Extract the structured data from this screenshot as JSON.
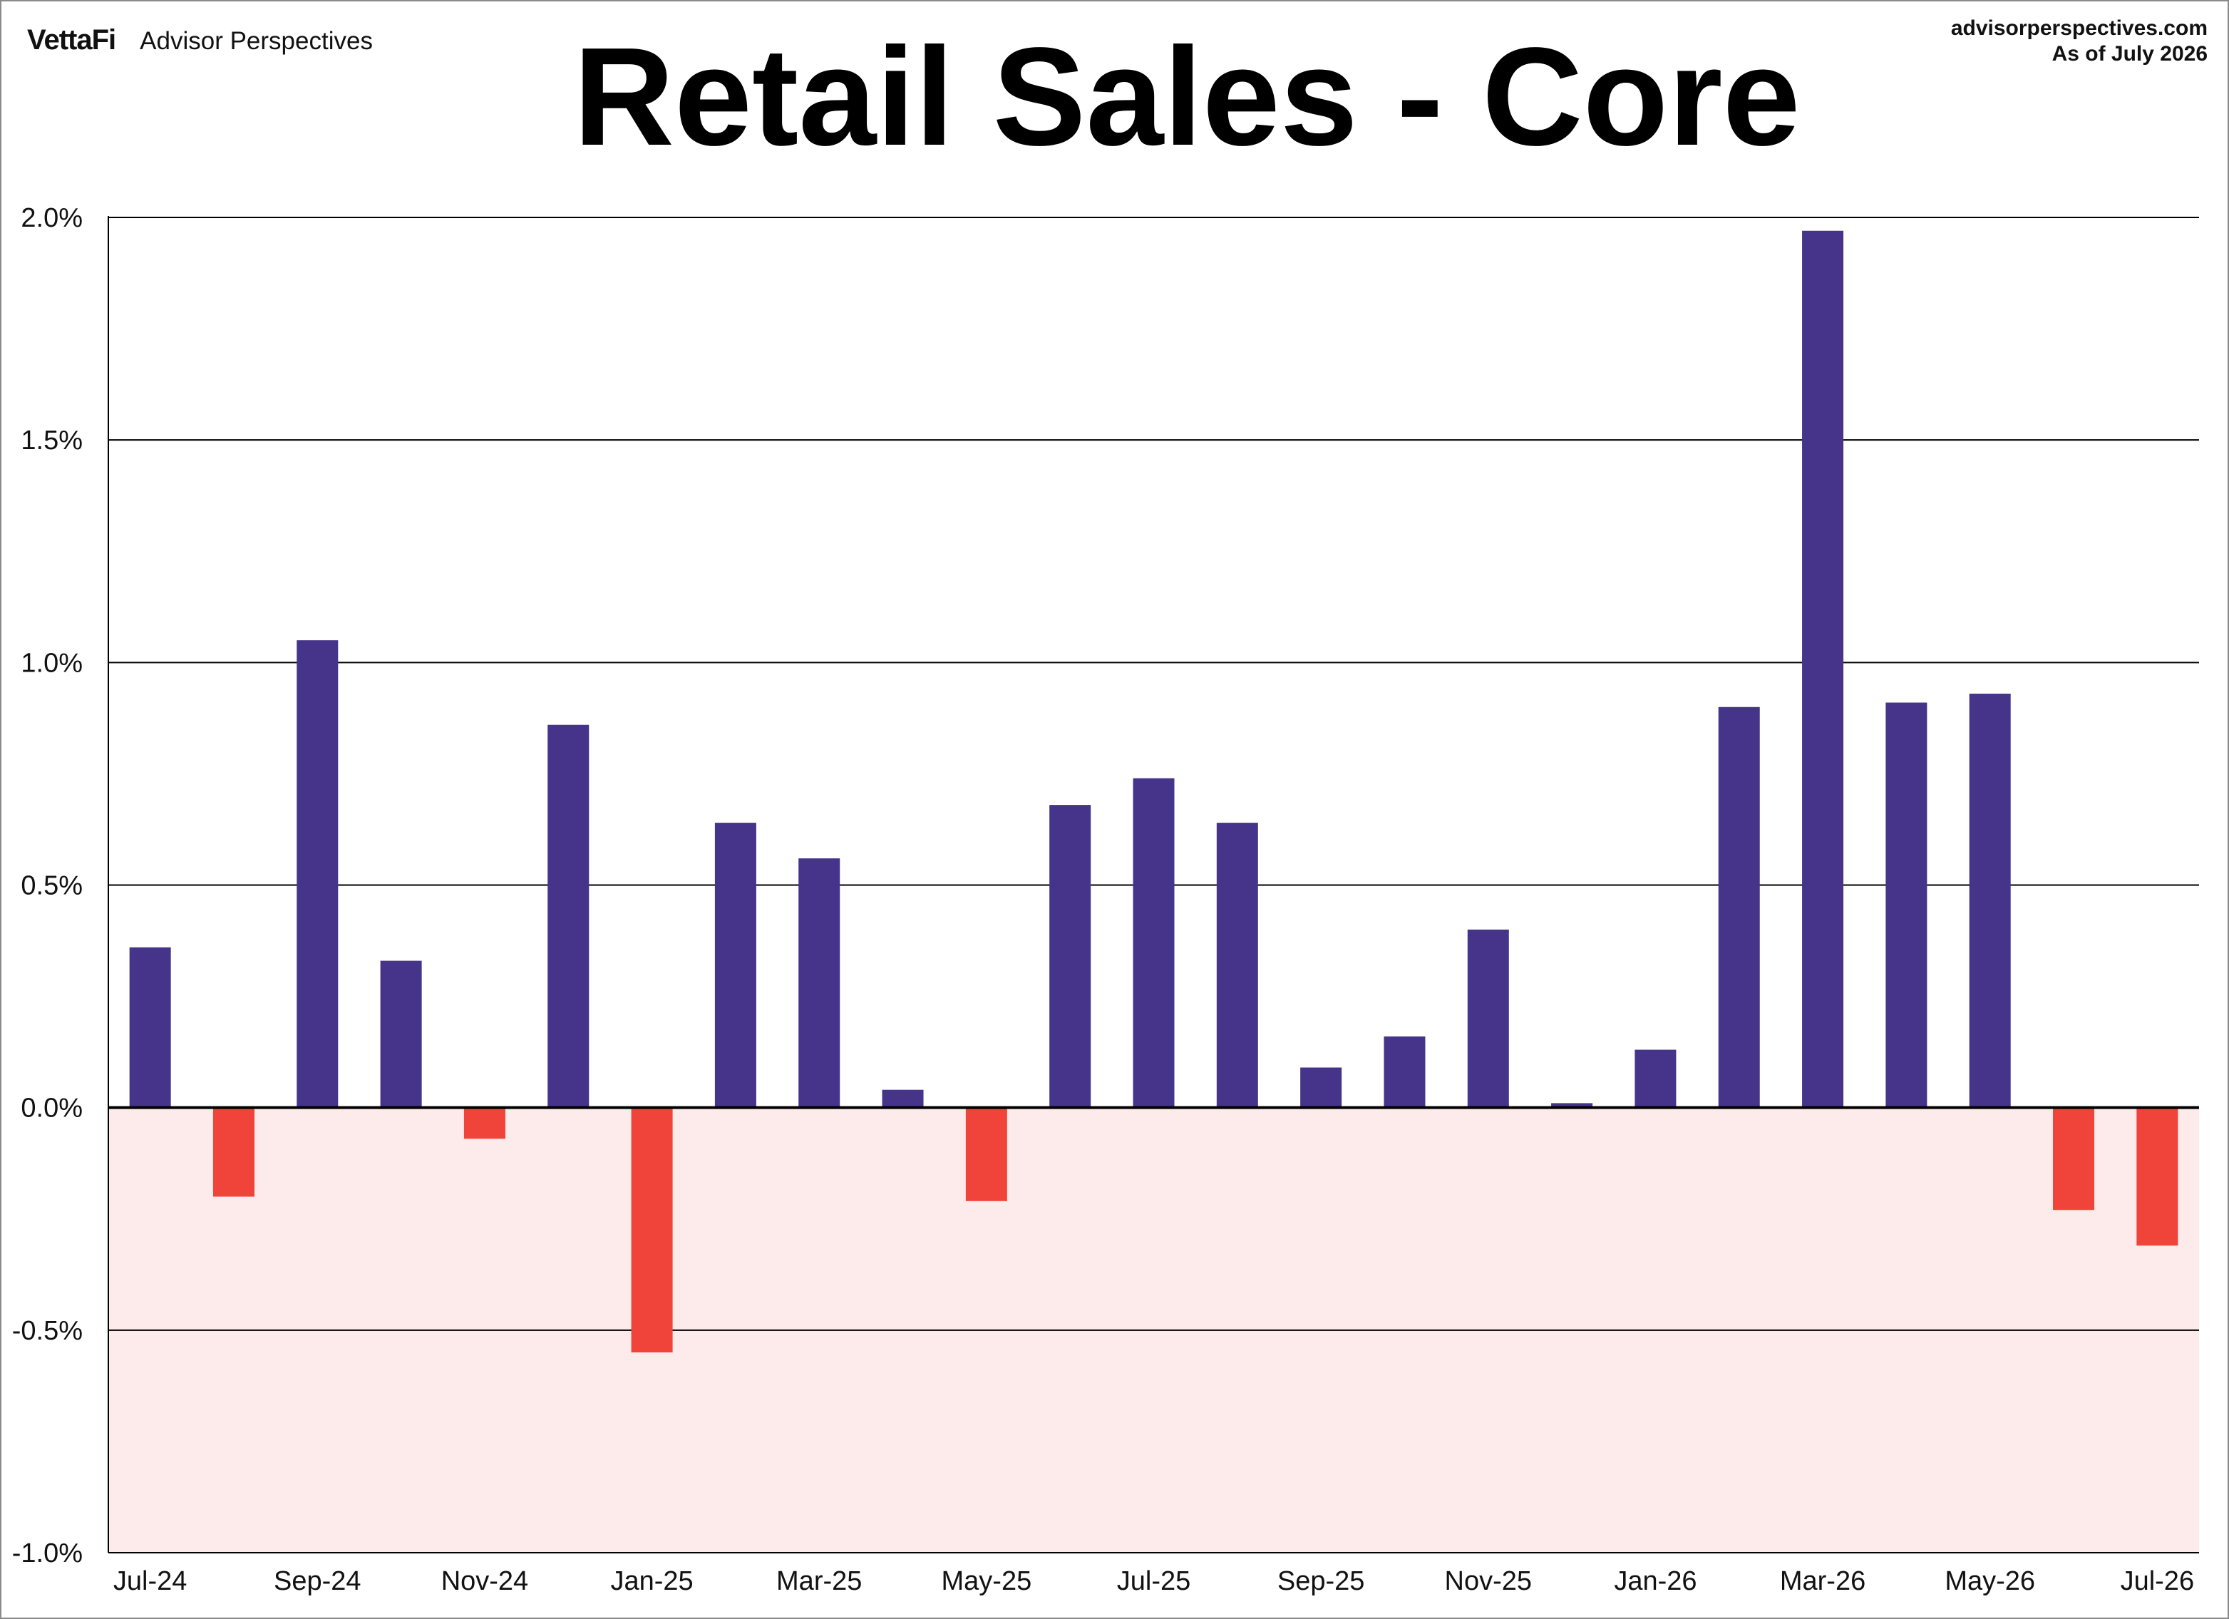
{
  "brand": {
    "logo": "VettaFi",
    "name": "Advisor Perspectives"
  },
  "source": {
    "site": "advisorperspectives.com",
    "asof": "As of July 2026"
  },
  "colors": {
    "positive": "#46348a",
    "negative": "#f0433a",
    "negative_zone": "#fdeaea",
    "grid": "#000000"
  },
  "chart_data": {
    "type": "bar",
    "title": "Retail Sales - Core",
    "xlabel": "",
    "ylabel": "",
    "ylim": [
      -1.0,
      2.0
    ],
    "yticks": [
      -1.0,
      -0.5,
      0.0,
      0.5,
      1.0,
      1.5,
      2.0
    ],
    "ytick_labels": [
      "-1.0%",
      "-0.5%",
      "0.0%",
      "0.5%",
      "1.0%",
      "1.5%",
      "2.0%"
    ],
    "grid": true,
    "negative_region_shaded": true,
    "categories": [
      "Jul-24",
      "Aug-24",
      "Sep-24",
      "Oct-24",
      "Nov-24",
      "Dec-24",
      "Jan-25",
      "Feb-25",
      "Mar-25",
      "Apr-25",
      "May-25",
      "Jun-25",
      "Jul-25",
      "Aug-25",
      "Sep-25",
      "Oct-25",
      "Nov-25",
      "Dec-25",
      "Jan-26",
      "Feb-26",
      "Mar-26",
      "Apr-26",
      "May-26",
      "Jun-26",
      "Jul-26"
    ],
    "x_tick_labels": [
      "Jul-24",
      "Sep-24",
      "Nov-24",
      "Jan-25",
      "Mar-25",
      "May-25",
      "Jul-25",
      "Sep-25",
      "Nov-25",
      "Jan-26",
      "Mar-26",
      "May-26",
      "Jul-26"
    ],
    "values": [
      0.36,
      -0.2,
      1.05,
      0.33,
      -0.07,
      0.86,
      -0.55,
      0.64,
      0.56,
      0.04,
      -0.21,
      0.68,
      0.74,
      0.64,
      0.09,
      0.16,
      0.4,
      0.01,
      0.13,
      0.9,
      1.97,
      0.91,
      0.93,
      -0.23,
      -0.31
    ]
  }
}
